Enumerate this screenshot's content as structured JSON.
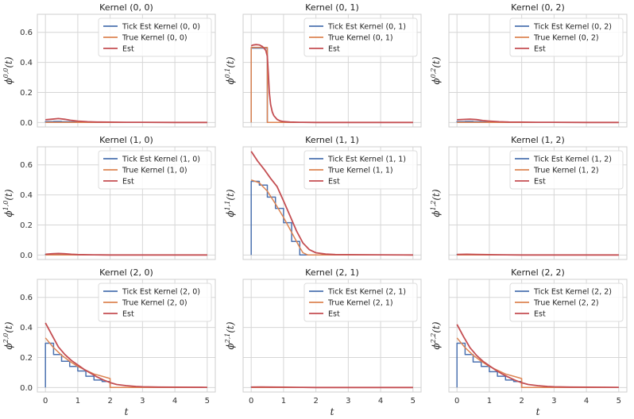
{
  "chart_data": {
    "type": "line",
    "layout": "3x3 grid of subplots, shared axes",
    "xlabel": "t",
    "xlim": [
      -0.25,
      5.25
    ],
    "ylim": [
      -0.03,
      0.72
    ],
    "xticks": [
      "0",
      "1",
      "2",
      "3",
      "4",
      "5"
    ],
    "yticks": [
      "0.0",
      "0.2",
      "0.4",
      "0.6"
    ],
    "xtick_values": [
      0,
      1,
      2,
      3,
      4,
      5
    ],
    "ytick_values": [
      0.0,
      0.2,
      0.4,
      0.6
    ],
    "grid": true,
    "legend_placement": "top-right",
    "colors": {
      "tick": "#4c72b0",
      "true": "#dd8452",
      "est": "#c44e52",
      "grid": "#d6d6d6",
      "frame": "#cfcfcf"
    },
    "panels": [
      {
        "title": "Kernel (0, 0)",
        "ylabel_sup": "0,0",
        "legend": [
          "Tick Est Kernel (0, 0)",
          "True Kernel (0, 0)",
          "Est"
        ],
        "series": [
          {
            "name": "Tick Est Kernel (0, 0)",
            "x": [
              0,
              0,
              0.25,
              0.25,
              0.5,
              0.5,
              0.75,
              0.75,
              1.0,
              1.0,
              5.0
            ],
            "y": [
              0,
              0.006,
              0.006,
              0.007,
              0.007,
              0.005,
              0.005,
              0.004,
              0.004,
              0.0,
              0.0
            ]
          },
          {
            "name": "True Kernel (0, 0)",
            "x": [
              0,
              5.0
            ],
            "y": [
              0.0,
              0.0
            ]
          },
          {
            "name": "Est",
            "x": [
              0,
              0.2,
              0.4,
              0.6,
              0.8,
              1.0,
              1.3,
              1.6,
              2.0,
              2.5,
              3.0,
              4.0,
              5.0
            ],
            "y": [
              0.018,
              0.022,
              0.026,
              0.021,
              0.014,
              0.009,
              0.005,
              0.003,
              0.002,
              0.001,
              0.001,
              0.0,
              0.0
            ]
          }
        ]
      },
      {
        "title": "Kernel (0, 1)",
        "ylabel_sup": "0,1",
        "legend": [
          "Tick Est Kernel (0, 1)",
          "True Kernel (0, 1)",
          "Est"
        ],
        "series": [
          {
            "name": "Tick Est Kernel (0, 1)",
            "x": [
              0,
              0,
              0.5,
              0.5,
              5.0
            ],
            "y": [
              0,
              0.495,
              0.495,
              0.0,
              0.0
            ]
          },
          {
            "name": "True Kernel (0, 1)",
            "x": [
              0,
              0,
              0.5,
              0.5,
              5.0
            ],
            "y": [
              0,
              0.5,
              0.5,
              0.0,
              0.0
            ]
          },
          {
            "name": "Est",
            "x": [
              0,
              0.05,
              0.15,
              0.25,
              0.35,
              0.45,
              0.5,
              0.53,
              0.56,
              0.6,
              0.65,
              0.7,
              0.8,
              0.9,
              1.0,
              1.2,
              1.5,
              2.0,
              3.0,
              4.0,
              5.0
            ],
            "y": [
              0.51,
              0.515,
              0.518,
              0.516,
              0.505,
              0.48,
              0.44,
              0.32,
              0.2,
              0.12,
              0.07,
              0.045,
              0.02,
              0.01,
              0.006,
              0.003,
              0.001,
              0.0,
              0.0,
              0.0,
              0.0
            ]
          }
        ]
      },
      {
        "title": "Kernel (0, 2)",
        "ylabel_sup": "0,2",
        "legend": [
          "Tick Est Kernel (0, 2)",
          "True Kernel (0, 2)",
          "Est"
        ],
        "series": [
          {
            "name": "Tick Est Kernel (0, 2)",
            "x": [
              0,
              0,
              0.25,
              0.25,
              0.5,
              0.5,
              0.75,
              0.75,
              1.0,
              1.0,
              5.0
            ],
            "y": [
              0,
              0.006,
              0.006,
              0.007,
              0.007,
              0.005,
              0.005,
              0.004,
              0.004,
              0.0,
              0.0
            ]
          },
          {
            "name": "True Kernel (0, 2)",
            "x": [
              0,
              5.0
            ],
            "y": [
              0.0,
              0.0
            ]
          },
          {
            "name": "Est",
            "x": [
              0,
              0.2,
              0.4,
              0.6,
              0.8,
              1.0,
              1.3,
              1.6,
              2.0,
              2.5,
              3.0,
              4.0,
              5.0
            ],
            "y": [
              0.018,
              0.02,
              0.022,
              0.019,
              0.013,
              0.009,
              0.005,
              0.003,
              0.002,
              0.001,
              0.001,
              0.0,
              0.0
            ]
          }
        ]
      },
      {
        "title": "Kernel (1, 0)",
        "ylabel_sup": "1,0",
        "legend": [
          "Tick Est Kernel (1, 0)",
          "True Kernel (1, 0)",
          "Est"
        ],
        "series": [
          {
            "name": "Tick Est Kernel (1, 0)",
            "x": [
              0,
              0,
              0.5,
              0.5,
              1.0,
              1.0,
              5.0
            ],
            "y": [
              0,
              0.004,
              0.004,
              0.003,
              0.003,
              0.0,
              0.0
            ]
          },
          {
            "name": "True Kernel (1, 0)",
            "x": [
              0,
              5.0
            ],
            "y": [
              0.0,
              0.0
            ]
          },
          {
            "name": "Est",
            "x": [
              0,
              0.2,
              0.4,
              0.6,
              0.8,
              1.0,
              1.5,
              2.0,
              3.0,
              5.0
            ],
            "y": [
              0.005,
              0.008,
              0.01,
              0.008,
              0.005,
              0.003,
              0.001,
              0.0,
              0.0,
              0.0
            ]
          }
        ]
      },
      {
        "title": "Kernel (1, 1)",
        "ylabel_sup": "1,1",
        "legend": [
          "Tick Est Kernel (1, 1)",
          "True Kernel (1, 1)",
          "Est"
        ],
        "series": [
          {
            "name": "Tick Est Kernel (1, 1)",
            "x": [
              0,
              0,
              0.25,
              0.25,
              0.5,
              0.5,
              0.75,
              0.75,
              1.0,
              1.0,
              1.25,
              1.25,
              1.5,
              1.5,
              5.0
            ],
            "y": [
              0,
              0.49,
              0.49,
              0.465,
              0.465,
              0.385,
              0.385,
              0.31,
              0.31,
              0.215,
              0.215,
              0.09,
              0.09,
              0.0,
              0.0
            ]
          },
          {
            "name": "True Kernel (1, 1)",
            "x": [
              0,
              0.25,
              0.5,
              0.75,
              1.0,
              1.25,
              1.5,
              1.6,
              1.75,
              5.0
            ],
            "y": [
              0.5,
              0.48,
              0.425,
              0.34,
              0.25,
              0.15,
              0.05,
              0.015,
              0.0,
              0.0
            ]
          },
          {
            "name": "Est",
            "x": [
              0,
              0.2,
              0.4,
              0.6,
              0.8,
              1.0,
              1.2,
              1.4,
              1.6,
              1.8,
              2.0,
              2.3,
              2.6,
              3.0,
              4.0,
              5.0
            ],
            "y": [
              0.69,
              0.625,
              0.57,
              0.51,
              0.455,
              0.36,
              0.26,
              0.16,
              0.08,
              0.035,
              0.015,
              0.006,
              0.003,
              0.002,
              0.001,
              0.0
            ]
          }
        ]
      },
      {
        "title": "Kernel (1, 2)",
        "ylabel_sup": "1,2",
        "legend": [
          "Tick Est Kernel (1, 2)",
          "True Kernel (1, 2)",
          "Est"
        ],
        "series": [
          {
            "name": "Tick Est Kernel (1, 2)",
            "x": [
              0,
              0,
              0.5,
              0.5,
              1.0,
              1.0,
              5.0
            ],
            "y": [
              0,
              0.003,
              0.003,
              0.002,
              0.002,
              0.0,
              0.0
            ]
          },
          {
            "name": "True Kernel (1, 2)",
            "x": [
              0,
              5.0
            ],
            "y": [
              0.0,
              0.0
            ]
          },
          {
            "name": "Est",
            "x": [
              0,
              0.3,
              0.6,
              1.0,
              1.5,
              2.0,
              3.0,
              5.0
            ],
            "y": [
              0.004,
              0.005,
              0.004,
              0.002,
              0.001,
              0.0,
              0.0,
              0.0
            ]
          }
        ]
      },
      {
        "title": "Kernel (2, 0)",
        "ylabel_sup": "2,0",
        "legend": [
          "Tick Est Kernel (2, 0)",
          "True Kernel (2, 0)",
          "Est"
        ],
        "series": [
          {
            "name": "Tick Est Kernel (2, 0)",
            "x": [
              0,
              0,
              0.25,
              0.25,
              0.5,
              0.5,
              0.75,
              0.75,
              1.0,
              1.0,
              1.25,
              1.25,
              1.5,
              1.5,
              1.75,
              1.75,
              2.0,
              2.0,
              5.0
            ],
            "y": [
              0,
              0.295,
              0.295,
              0.22,
              0.22,
              0.175,
              0.175,
              0.14,
              0.14,
              0.11,
              0.11,
              0.075,
              0.075,
              0.05,
              0.05,
              0.04,
              0.04,
              0.0,
              0.0
            ]
          },
          {
            "name": "True Kernel (2, 0)",
            "x": [
              0,
              0.25,
              0.5,
              0.75,
              1.0,
              1.25,
              1.5,
              1.75,
              2.0,
              2.0,
              5.0
            ],
            "y": [
              0.33,
              0.265,
              0.215,
              0.175,
              0.14,
              0.115,
              0.09,
              0.075,
              0.06,
              0.0,
              0.0
            ]
          },
          {
            "name": "Est",
            "x": [
              0,
              0.2,
              0.4,
              0.6,
              0.8,
              1.0,
              1.2,
              1.4,
              1.6,
              1.8,
              2.0,
              2.2,
              2.5,
              2.8,
              3.0,
              3.5,
              4.0,
              5.0
            ],
            "y": [
              0.43,
              0.35,
              0.27,
              0.22,
              0.18,
              0.15,
              0.12,
              0.095,
              0.07,
              0.05,
              0.033,
              0.02,
              0.012,
              0.007,
              0.005,
              0.003,
              0.002,
              0.001
            ]
          }
        ]
      },
      {
        "title": "Kernel (2, 1)",
        "ylabel_sup": "2,1",
        "legend": [
          "Tick Est Kernel (2, 1)",
          "True Kernel (2, 1)",
          "Est"
        ],
        "series": [
          {
            "name": "Tick Est Kernel (2, 1)",
            "x": [
              0,
              0,
              0.5,
              0.5,
              1.0,
              1.0,
              5.0
            ],
            "y": [
              0,
              0.003,
              0.003,
              0.002,
              0.002,
              0.0,
              0.0
            ]
          },
          {
            "name": "True Kernel (2, 1)",
            "x": [
              0,
              5.0
            ],
            "y": [
              0.0,
              0.0
            ]
          },
          {
            "name": "Est",
            "x": [
              0,
              0.3,
              0.6,
              1.0,
              1.5,
              2.0,
              3.0,
              5.0
            ],
            "y": [
              0.003,
              0.004,
              0.003,
              0.002,
              0.001,
              0.0,
              0.0,
              0.0
            ]
          }
        ]
      },
      {
        "title": "Kernel (2, 2)",
        "ylabel_sup": "2,2",
        "legend": [
          "Tick Est Kernel (2, 2)",
          "True Kernel (2, 2)",
          "Est"
        ],
        "series": [
          {
            "name": "Tick Est Kernel (2, 2)",
            "x": [
              0,
              0,
              0.25,
              0.25,
              0.5,
              0.5,
              0.75,
              0.75,
              1.0,
              1.0,
              1.25,
              1.25,
              1.5,
              1.5,
              1.75,
              1.75,
              2.0,
              2.0,
              5.0
            ],
            "y": [
              0,
              0.295,
              0.295,
              0.22,
              0.22,
              0.17,
              0.17,
              0.14,
              0.14,
              0.105,
              0.105,
              0.075,
              0.075,
              0.05,
              0.05,
              0.04,
              0.04,
              0.0,
              0.0
            ]
          },
          {
            "name": "True Kernel (2, 2)",
            "x": [
              0,
              0.25,
              0.5,
              0.75,
              1.0,
              1.25,
              1.5,
              1.75,
              2.0,
              2.0,
              5.0
            ],
            "y": [
              0.33,
              0.265,
              0.215,
              0.175,
              0.14,
              0.115,
              0.09,
              0.075,
              0.06,
              0.0,
              0.0
            ]
          },
          {
            "name": "Est",
            "x": [
              0,
              0.2,
              0.4,
              0.6,
              0.8,
              1.0,
              1.2,
              1.4,
              1.6,
              1.8,
              2.0,
              2.2,
              2.5,
              2.8,
              3.0,
              3.5,
              4.0,
              5.0
            ],
            "y": [
              0.42,
              0.34,
              0.265,
              0.215,
              0.175,
              0.145,
              0.115,
              0.09,
              0.068,
              0.048,
              0.032,
              0.02,
              0.012,
              0.007,
              0.005,
              0.003,
              0.002,
              0.001
            ]
          }
        ]
      }
    ]
  }
}
